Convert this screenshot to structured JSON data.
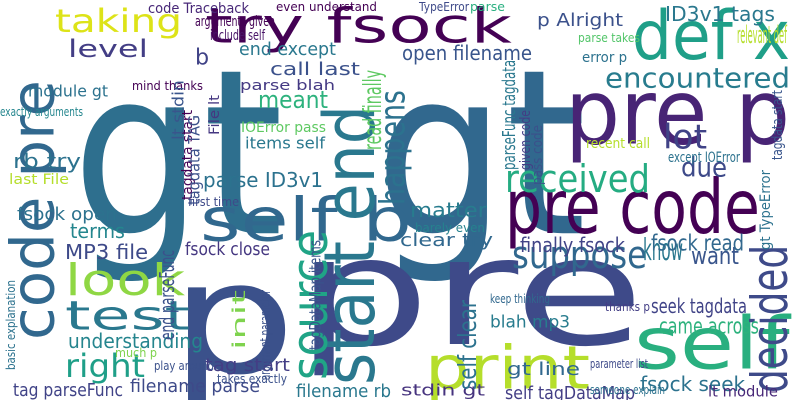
{
  "words": [
    {
      "text": "gt",
      "color": "#2e6f8e"
    },
    {
      "text": "gt",
      "color": "#31688e"
    },
    {
      "text": "p",
      "color": "#3b518b"
    },
    {
      "text": "pre",
      "color": "#3e4a89"
    },
    {
      "text": "try fsock",
      "color": "#440154"
    },
    {
      "text": "def x",
      "color": "#1f9f88"
    },
    {
      "text": "pre p",
      "color": "#482475"
    },
    {
      "text": "code pre",
      "color": "#31688e"
    },
    {
      "text": "self b",
      "color": "#31688e"
    },
    {
      "text": "start end",
      "color": "#2a788e"
    },
    {
      "text": "pre code",
      "color": "#440154"
    },
    {
      "text": "self",
      "color": "#29af7f"
    },
    {
      "text": "print",
      "color": "#b5de2b"
    },
    {
      "text": "decided",
      "color": "#3e4a89"
    },
    {
      "text": "source",
      "color": "#20a486"
    },
    {
      "text": "test",
      "color": "#2a788e"
    },
    {
      "text": "look",
      "color": "#8fd744"
    },
    {
      "text": "received",
      "color": "#25ac82"
    },
    {
      "text": "encountered",
      "color": "#287c8e"
    },
    {
      "text": "suppose",
      "color": "#31688e"
    },
    {
      "text": "taking",
      "color": "#dde318"
    },
    {
      "text": "right",
      "color": "#1f9f88"
    },
    {
      "text": "happens",
      "color": "#2c728e"
    },
    {
      "text": "meant",
      "color": "#2db27d"
    },
    {
      "text": "lot",
      "color": "#404387"
    },
    {
      "text": "level",
      "color": "#433e85"
    },
    {
      "text": "due",
      "color": "#3e4a89"
    },
    {
      "text": "know",
      "color": "#2a788e"
    },
    {
      "text": "want",
      "color": "#39558c"
    },
    {
      "text": "understanding",
      "color": "#25858e"
    },
    {
      "text": "came across",
      "color": "#2db27d"
    },
    {
      "text": "matter",
      "color": "#287c8e"
    },
    {
      "text": "terms",
      "color": "#24868e"
    },
    {
      "text": "fsock read",
      "color": "#31688e"
    },
    {
      "text": "p Alright",
      "color": "#3b518b"
    },
    {
      "text": "ID3v1 tags",
      "color": "#2a788e"
    },
    {
      "text": "open filename",
      "color": "#39558c"
    },
    {
      "text": "parse ID3v1",
      "color": "#2c728e"
    },
    {
      "text": "fsock open",
      "color": "#2c728e"
    },
    {
      "text": "MP3 file",
      "color": "#3e4a89"
    },
    {
      "text": "rb try",
      "color": "#2c728e"
    },
    {
      "text": "clear try",
      "color": "#31688e"
    },
    {
      "text": "finally fsock",
      "color": "#414487"
    },
    {
      "text": "fsock close",
      "color": "#453781"
    },
    {
      "text": "fsock seek",
      "color": "#2c728e"
    },
    {
      "text": "seek tagdata",
      "color": "#404387"
    },
    {
      "text": "tag start",
      "color": "#433e85"
    },
    {
      "text": "filename parse",
      "color": "#3e4a89"
    },
    {
      "text": "filename rb",
      "color": "#2a788e"
    },
    {
      "text": "self tagDataMap",
      "color": "#433e85"
    },
    {
      "text": "tag parseFunc",
      "color": "#404387"
    },
    {
      "text": "gt line",
      "color": "#31688e"
    },
    {
      "text": "lt module",
      "color": "#482878"
    },
    {
      "text": "stdin gt",
      "color": "#46337e"
    },
    {
      "text": "blah mp3",
      "color": "#287c8e"
    },
    {
      "text": "self clear",
      "color": "#2c728e"
    },
    {
      "text": "init",
      "color": "#7fd34e"
    },
    {
      "text": "read finally",
      "color": "#5ec962"
    },
    {
      "text": "call last",
      "color": "#3b518b"
    },
    {
      "text": "end except",
      "color": "#2a788e"
    },
    {
      "text": "module gt",
      "color": "#2c728e"
    },
    {
      "text": "b",
      "color": "#404387"
    },
    {
      "text": "end parseFunc",
      "color": "#3b518b"
    },
    {
      "text": "tagdata start",
      "color": "#440154"
    },
    {
      "text": "items self",
      "color": "#2a788e"
    },
    {
      "text": "IOError pass",
      "color": "#5ec962"
    },
    {
      "text": "parse blah",
      "color": "#443983"
    },
    {
      "text": "code Traceback",
      "color": "#482878"
    },
    {
      "text": "arguments given",
      "color": "#440154"
    },
    {
      "text": "include self",
      "color": "#481467"
    },
    {
      "text": "even understand",
      "color": "#440154"
    },
    {
      "text": "TypeError",
      "color": "#3e4a89"
    },
    {
      "text": "parse",
      "color": "#29af7f"
    },
    {
      "text": "parse takes",
      "color": "#52c569"
    },
    {
      "text": "relevant def",
      "color": "#b5de2b"
    },
    {
      "text": "error p",
      "color": "#2c728e"
    },
    {
      "text": "mind thanks",
      "color": "#440154"
    },
    {
      "text": "exactly arguments",
      "color": "#24868e"
    },
    {
      "text": "File lt",
      "color": "#453781"
    },
    {
      "text": "lt stdin",
      "color": "#39558c"
    },
    {
      "text": "tagdata TAG",
      "color": "#3b518b"
    },
    {
      "text": "last File",
      "color": "#b5de2b"
    },
    {
      "text": "first time",
      "color": "#3e4a89"
    },
    {
      "text": "recent call",
      "color": "#b5de2b"
    },
    {
      "text": "except IOError",
      "color": "#2c728e"
    },
    {
      "text": "given code",
      "color": "#433e85"
    },
    {
      "text": "pass code",
      "color": "#3b518b"
    },
    {
      "text": "parseFunc tagdata",
      "color": "#2a788e"
    },
    {
      "text": "gt TypeError",
      "color": "#2c728e"
    },
    {
      "text": "tagdata start",
      "color": "#39558c"
    },
    {
      "text": "barely even",
      "color": "#26828e"
    },
    {
      "text": "tagDataMap items",
      "color": "#39558c"
    },
    {
      "text": "argument parameter",
      "color": "#3b518b"
    },
    {
      "text": "basic explanation",
      "color": "#2c728e"
    },
    {
      "text": "much p",
      "color": "#7fd34e"
    },
    {
      "text": "play around",
      "color": "#3b518b"
    },
    {
      "text": "takes exactly",
      "color": "#3b518b"
    },
    {
      "text": "keep thinking",
      "color": "#31688e"
    },
    {
      "text": "thanks p",
      "color": "#433e85"
    },
    {
      "text": "parameter list",
      "color": "#3e4a89"
    },
    {
      "text": "someone explain",
      "color": "#2c728e"
    }
  ]
}
